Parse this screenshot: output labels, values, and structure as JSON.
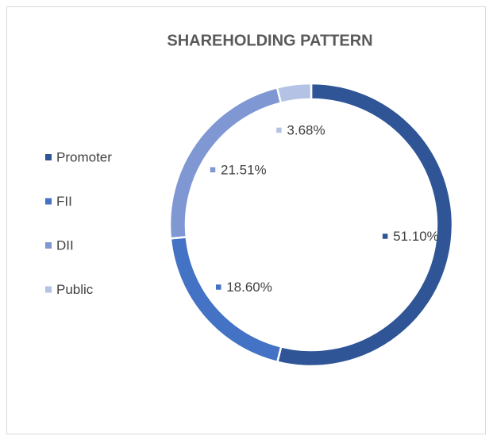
{
  "chart_data": {
    "type": "donut",
    "title": "SHAREHOLDING PATTERN",
    "categories": [
      "Promoter",
      "FII",
      "DII",
      "Public"
    ],
    "values": [
      51.1,
      18.6,
      21.51,
      3.68
    ],
    "value_labels": [
      "51.10%",
      "18.60%",
      "21.51%",
      "3.68%"
    ],
    "colors": [
      "#2f5597",
      "#4472c4",
      "#7f97d3",
      "#b4c2e6"
    ],
    "legend": "left"
  }
}
